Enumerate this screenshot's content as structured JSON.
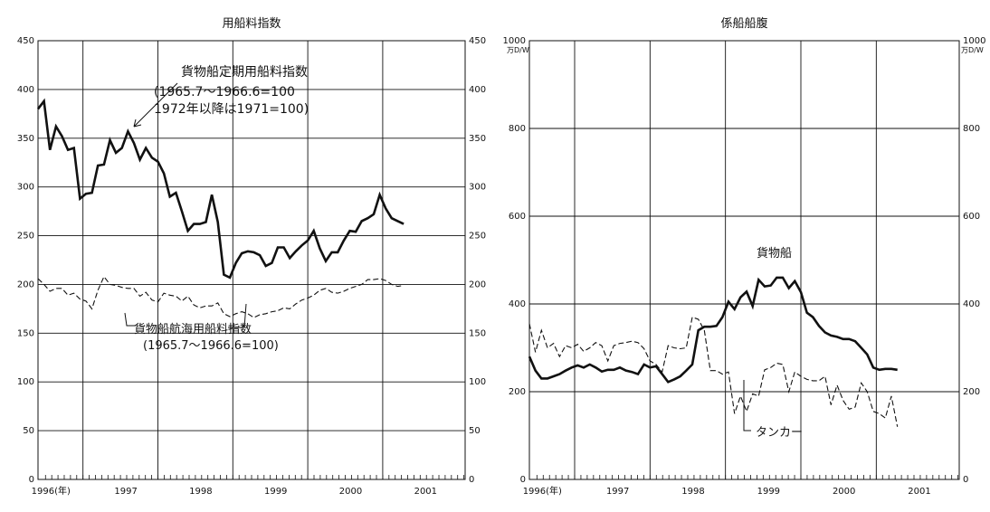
{
  "chart_data": [
    {
      "type": "line",
      "title": "用船料指数",
      "x_range": [
        1995.9,
        2001.6
      ],
      "ylim": [
        0,
        450
      ],
      "yticks": [
        0,
        50,
        100,
        150,
        200,
        250,
        300,
        350,
        400,
        450
      ],
      "yticks_labels": [
        "0",
        "50",
        "100",
        "150",
        "200",
        "250",
        "300",
        "350",
        "400",
        "450"
      ],
      "xticks": [
        {
          "label": "1996(年)",
          "x": 1996.0
        },
        {
          "label": "1997",
          "x": 1997.0
        },
        {
          "label": "1998",
          "x": 1998.0
        },
        {
          "label": "1999",
          "x": 1999.0
        },
        {
          "label": "2000",
          "x": 2000.0
        },
        {
          "label": "2001",
          "x": 2001.0
        }
      ],
      "grid": true,
      "series": [
        {
          "name": "貨物船定期用船料指数",
          "note1": "(1965.7～1966.6=100",
          "note2": "1972年以降は1971=100)",
          "style": "solid",
          "x": [
            1995.9,
            1995.98,
            1996.06,
            1996.14,
            1996.22,
            1996.3,
            1996.38,
            1996.46,
            1996.54,
            1996.62,
            1996.7,
            1996.78,
            1996.86,
            1996.94,
            1997.02,
            1997.1,
            1997.18,
            1997.26,
            1997.34,
            1997.42,
            1997.5,
            1997.58,
            1997.66,
            1997.74,
            1997.82,
            1997.9,
            1997.98,
            1998.06,
            1998.14,
            1998.22,
            1998.3,
            1998.38,
            1998.46,
            1998.54,
            1998.62,
            1998.7,
            1998.78,
            1998.86,
            1998.94,
            1999.02,
            1999.1,
            1999.18,
            1999.26,
            1999.34,
            1999.42,
            1999.5,
            1999.58,
            1999.66,
            1999.74,
            1999.82,
            1999.9,
            1999.98,
            2000.06,
            2000.14,
            2000.22,
            2000.3,
            2000.38,
            2000.46,
            2000.54,
            2000.62,
            2000.7,
            2000.78
          ],
          "y": [
            380,
            388,
            338,
            362,
            352,
            338,
            340,
            288,
            293,
            294,
            322,
            323,
            348,
            335,
            340,
            357,
            345,
            328,
            340,
            330,
            326,
            314,
            290,
            294,
            275,
            255,
            262,
            262,
            264,
            292,
            264,
            210,
            207,
            222,
            232,
            234,
            233,
            230,
            219,
            222,
            238,
            238,
            227,
            234,
            240,
            245,
            255,
            237,
            224,
            233,
            233,
            245,
            255,
            254,
            265,
            268,
            272,
            292,
            278,
            268,
            265,
            262
          ]
        },
        {
          "name": "貨物船航海用船料指数",
          "note1": "(1965.7～1966.6=100)",
          "style": "dashed",
          "x": [
            1995.9,
            1995.98,
            1996.06,
            1996.14,
            1996.22,
            1996.3,
            1996.38,
            1996.46,
            1996.54,
            1996.62,
            1996.7,
            1996.78,
            1996.86,
            1996.94,
            1997.02,
            1997.1,
            1997.18,
            1997.26,
            1997.34,
            1997.42,
            1997.5,
            1997.58,
            1997.66,
            1997.74,
            1997.82,
            1997.9,
            1997.98,
            1998.06,
            1998.14,
            1998.22,
            1998.3,
            1998.38,
            1998.46,
            1998.54,
            1998.62,
            1998.7,
            1998.78,
            1998.86,
            1998.94,
            1999.02,
            1999.1,
            1999.18,
            1999.26,
            1999.34,
            1999.42,
            1999.5,
            1999.58,
            1999.66,
            1999.74,
            1999.82,
            1999.9,
            1999.98,
            2000.06,
            2000.14,
            2000.22,
            2000.3,
            2000.38,
            2000.46,
            2000.54,
            2000.62,
            2000.7,
            2000.78
          ],
          "y": [
            206,
            200,
            193,
            196,
            196,
            189,
            191,
            185,
            183,
            175,
            194,
            208,
            200,
            199,
            197,
            196,
            196,
            188,
            192,
            184,
            182,
            191,
            189,
            188,
            183,
            188,
            179,
            176,
            178,
            178,
            181,
            170,
            167,
            170,
            172,
            170,
            166,
            169,
            170,
            172,
            173,
            176,
            175,
            180,
            184,
            186,
            189,
            194,
            196,
            192,
            191,
            193,
            196,
            198,
            200,
            205,
            205,
            206,
            204,
            200,
            198,
            199
          ]
        }
      ]
    },
    {
      "type": "line",
      "title": "係船船腹",
      "unit": "万D/W",
      "x_range": [
        1995.9,
        2001.6
      ],
      "ylim": [
        0,
        1000
      ],
      "yticks": [
        0,
        200,
        400,
        600,
        800,
        1000
      ],
      "yticks_labels": [
        "0",
        "200",
        "400",
        "600",
        "800",
        "1000"
      ],
      "xticks": [
        {
          "label": "1996(年)",
          "x": 1996.0
        },
        {
          "label": "1997",
          "x": 1997.0
        },
        {
          "label": "1998",
          "x": 1998.0
        },
        {
          "label": "1999",
          "x": 1999.0
        },
        {
          "label": "2000",
          "x": 2000.0
        },
        {
          "label": "2001",
          "x": 2001.0
        }
      ],
      "grid": true,
      "series": [
        {
          "name": "貨物船",
          "style": "solid",
          "x": [
            1995.9,
            1995.98,
            1996.06,
            1996.14,
            1996.22,
            1996.3,
            1996.38,
            1996.46,
            1996.54,
            1996.62,
            1996.7,
            1996.78,
            1996.86,
            1996.94,
            1997.02,
            1997.1,
            1997.18,
            1997.26,
            1997.34,
            1997.42,
            1997.5,
            1997.58,
            1997.66,
            1997.74,
            1997.82,
            1997.9,
            1997.98,
            1998.06,
            1998.14,
            1998.22,
            1998.3,
            1998.38,
            1998.46,
            1998.54,
            1998.62,
            1998.7,
            1998.78,
            1998.86,
            1998.94,
            1999.02,
            1999.1,
            1999.18,
            1999.26,
            1999.34,
            1999.42,
            1999.5,
            1999.58,
            1999.66,
            1999.74,
            1999.82,
            1999.9,
            1999.98,
            2000.06,
            2000.14,
            2000.22,
            2000.3,
            2000.38,
            2000.46,
            2000.54,
            2000.62,
            2000.7,
            2000.78
          ],
          "y": [
            280,
            248,
            230,
            230,
            235,
            240,
            248,
            255,
            260,
            255,
            262,
            255,
            246,
            250,
            250,
            255,
            248,
            245,
            240,
            262,
            255,
            258,
            240,
            222,
            228,
            235,
            248,
            262,
            340,
            348,
            348,
            350,
            370,
            405,
            388,
            415,
            428,
            395,
            455,
            440,
            442,
            460,
            460,
            436,
            452,
            427,
            380,
            370,
            350,
            335,
            328,
            325,
            320,
            320,
            315,
            300,
            285,
            255,
            250,
            252,
            252,
            250
          ]
        },
        {
          "name": "タンカー",
          "style": "dashed",
          "x": [
            1995.9,
            1995.98,
            1996.06,
            1996.14,
            1996.22,
            1996.3,
            1996.38,
            1996.46,
            1996.54,
            1996.62,
            1996.7,
            1996.78,
            1996.86,
            1996.94,
            1997.02,
            1997.1,
            1997.18,
            1997.26,
            1997.34,
            1997.42,
            1997.5,
            1997.58,
            1997.66,
            1997.74,
            1997.82,
            1997.9,
            1997.98,
            1998.06,
            1998.14,
            1998.22,
            1998.3,
            1998.38,
            1998.46,
            1998.54,
            1998.62,
            1998.7,
            1998.78,
            1998.86,
            1998.94,
            1999.02,
            1999.1,
            1999.18,
            1999.26,
            1999.34,
            1999.42,
            1999.5,
            1999.58,
            1999.66,
            1999.74,
            1999.82,
            1999.9,
            1999.98,
            2000.06,
            2000.14,
            2000.22,
            2000.3,
            2000.38,
            2000.46,
            2000.54,
            2000.62,
            2000.7,
            2000.78
          ],
          "y": [
            355,
            290,
            340,
            300,
            310,
            280,
            305,
            300,
            308,
            292,
            300,
            312,
            305,
            270,
            305,
            310,
            312,
            315,
            312,
            298,
            270,
            262,
            245,
            305,
            300,
            298,
            300,
            370,
            365,
            340,
            248,
            248,
            240,
            245,
            150,
            190,
            155,
            195,
            190,
            250,
            255,
            265,
            262,
            200,
            245,
            235,
            228,
            225,
            225,
            235,
            170,
            215,
            180,
            160,
            165,
            220,
            200,
            155,
            150,
            140,
            190,
            120
          ]
        }
      ]
    }
  ]
}
